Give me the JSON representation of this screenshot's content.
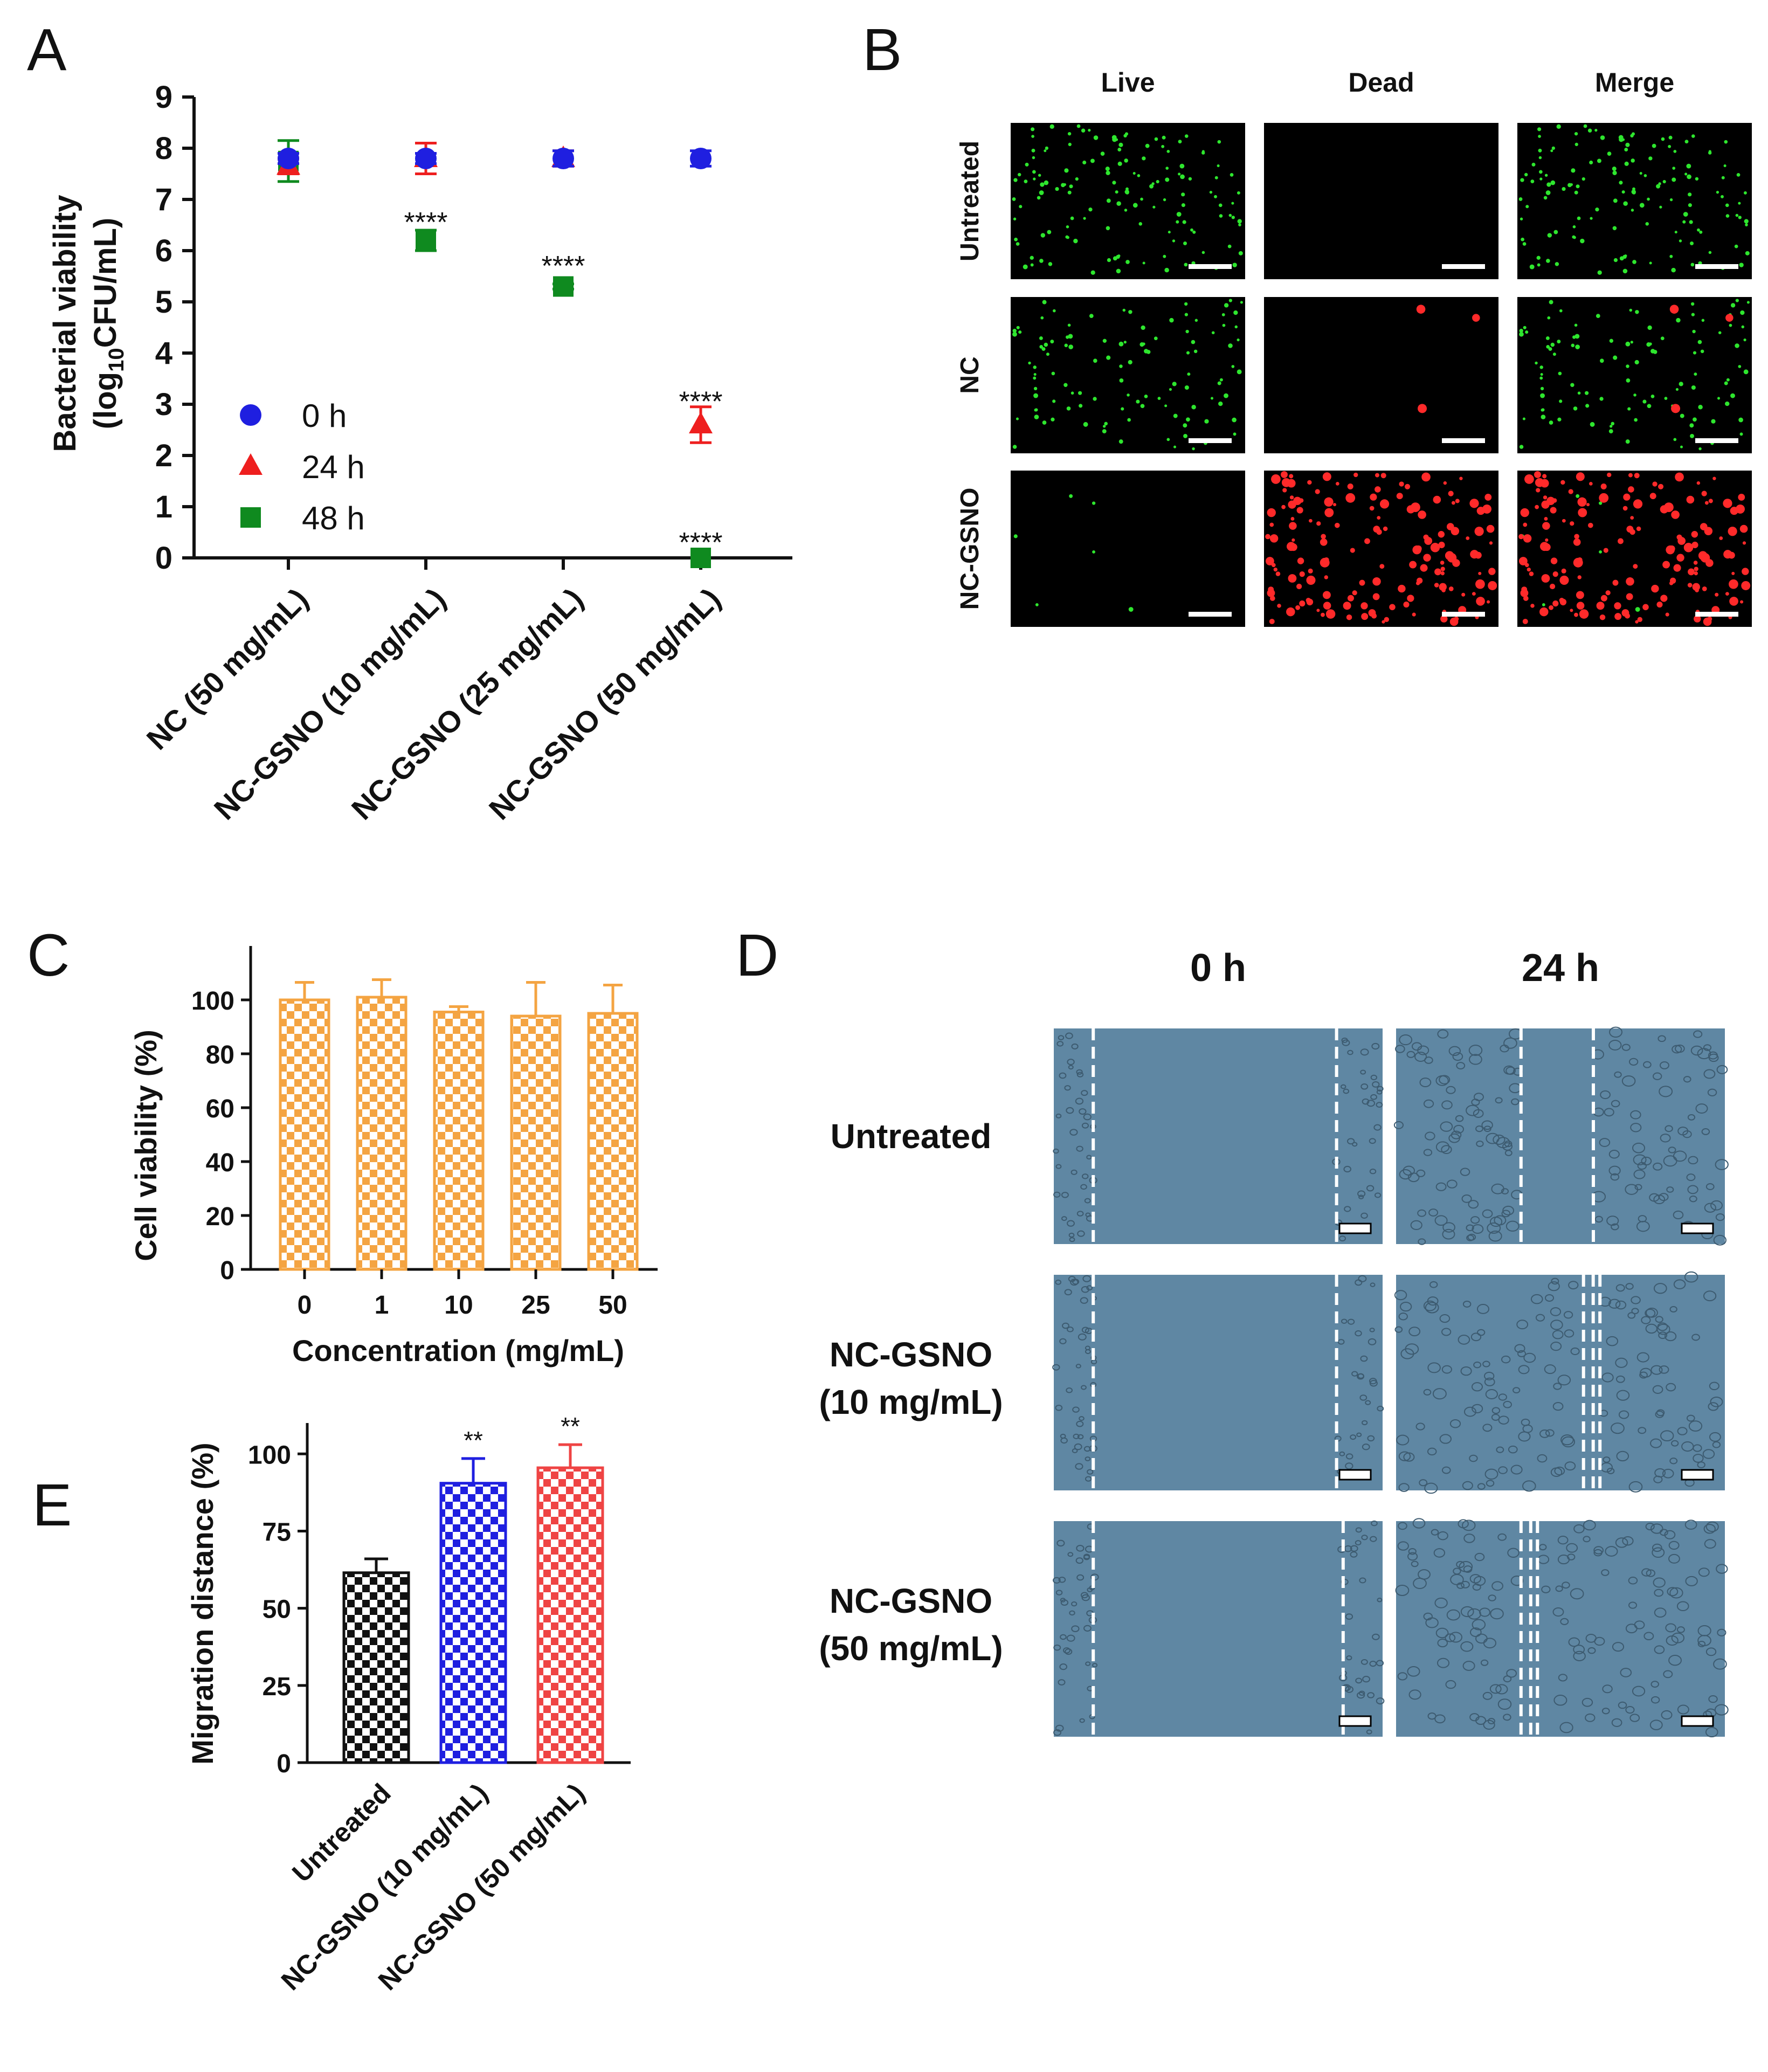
{
  "panel_letters": {
    "a": "A",
    "b": "B",
    "c": "C",
    "d": "D",
    "e": "E"
  },
  "colors": {
    "t0": "#1f1fe0",
    "t24": "#ee1f1f",
    "t48": "#0f8a1f",
    "cell": "#f4a442",
    "untreated_bar": "#111111",
    "gsno10_bar": "#1f1fe0",
    "gsno50_bar": "#ef4444",
    "wound_bg": "#5f87a3",
    "live": "#2ee62e",
    "dead": "#ff2a2a"
  },
  "chart_data": [
    {
      "id": "A",
      "type": "scatter",
      "title": "",
      "ylabel_line1": "Bacterial viability",
      "ylabel_line2_pre": "(log",
      "ylabel_line2_sub": "10",
      "ylabel_line2_post": "CFU/mL)",
      "ylim": [
        0,
        9
      ],
      "yticks": [
        "0",
        "1",
        "2",
        "3",
        "4",
        "5",
        "6",
        "7",
        "8",
        "9"
      ],
      "categories": [
        "NC (50 mg/mL)",
        "NC-GSNO (10 mg/mL)",
        "NC-GSNO (25 mg/mL)",
        "NC-GSNO (50 mg/mL)"
      ],
      "series": [
        {
          "name": "0 h",
          "marker": "circle",
          "color": "#1f1fe0",
          "values": [
            7.8,
            7.8,
            7.8,
            7.8
          ],
          "errors": [
            0.1,
            0.1,
            0.15,
            0.15
          ]
        },
        {
          "name": "24 h",
          "marker": "triangle",
          "color": "#ee1f1f",
          "values": [
            7.65,
            7.8,
            7.8,
            2.6
          ],
          "errors": [
            0.15,
            0.3,
            0.15,
            0.35
          ]
        },
        {
          "name": "48 h",
          "marker": "square",
          "color": "#0f8a1f",
          "values": [
            7.75,
            6.2,
            5.3,
            0.0
          ],
          "errors": [
            0.4,
            0.2,
            0.05,
            0.0
          ]
        }
      ],
      "annotations": [
        {
          "category": 1,
          "y": 6.6,
          "text": "****"
        },
        {
          "category": 2,
          "y": 5.75,
          "text": "****"
        },
        {
          "category": 3,
          "y": 3.1,
          "text": "****"
        },
        {
          "category": 3,
          "y": 0.35,
          "text": "****"
        }
      ],
      "legend_position": "inside-left"
    },
    {
      "id": "C",
      "type": "bar",
      "title": "",
      "xlabel": "Concentration (mg/mL)",
      "ylabel": "Cell viability (%)",
      "ylim": [
        0,
        120
      ],
      "yticks": [
        "0",
        "20",
        "40",
        "60",
        "80",
        "100"
      ],
      "categories": [
        "0",
        "1",
        "10",
        "25",
        "50"
      ],
      "values": [
        100,
        101,
        95.5,
        94,
        95
      ],
      "errors": [
        6.5,
        6.5,
        2,
        12.5,
        10.5
      ],
      "color": "#f4a442"
    },
    {
      "id": "E",
      "type": "bar",
      "title": "",
      "xlabel": "",
      "ylabel": "Migration distance (%)",
      "ylim": [
        0,
        110
      ],
      "yticks": [
        "0",
        "25",
        "50",
        "75",
        "100"
      ],
      "categories": [
        "Untreated",
        "NC-GSNO (10 mg/mL)",
        "NC-GSNO (50 mg/mL)"
      ],
      "values": [
        61.5,
        90.5,
        95.5
      ],
      "errors": [
        4.5,
        8,
        7.5
      ],
      "colors": [
        "#111111",
        "#1f1fe0",
        "#ef4444"
      ],
      "annotations": [
        "",
        "**",
        "**"
      ]
    }
  ],
  "panel_b": {
    "columns": [
      "Live",
      "Dead",
      "Merge"
    ],
    "rows": [
      "Untreated",
      "NC",
      "NC-GSNO"
    ]
  },
  "panel_d": {
    "columns": [
      "0 h",
      "24 h"
    ],
    "rows": [
      {
        "line1": "Untreated",
        "line2": ""
      },
      {
        "line1": "NC-GSNO",
        "line2": "(10 mg/mL)"
      },
      {
        "line1": "NC-GSNO",
        "line2": "(50 mg/mL)"
      }
    ]
  }
}
